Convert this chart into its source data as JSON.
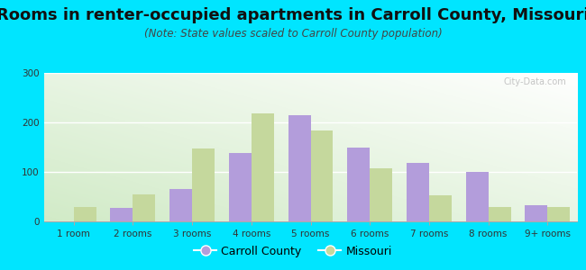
{
  "title": "Rooms in renter-occupied apartments in Carroll County, Missouri",
  "subtitle": "(Note: State values scaled to Carroll County population)",
  "categories": [
    "1 room",
    "2 rooms",
    "3 rooms",
    "4 rooms",
    "5 rooms",
    "6 rooms",
    "7 rooms",
    "8 rooms",
    "9+ rooms"
  ],
  "carroll_county": [
    0,
    28,
    65,
    138,
    215,
    150,
    118,
    100,
    33
  ],
  "missouri": [
    30,
    55,
    148,
    218,
    183,
    108,
    52,
    30,
    30
  ],
  "carroll_color": "#b39ddb",
  "missouri_color": "#c5d89d",
  "ylim": [
    0,
    300
  ],
  "yticks": [
    0,
    100,
    200,
    300
  ],
  "bg_outer": "#00e5ff",
  "bar_width": 0.38,
  "title_fontsize": 13,
  "subtitle_fontsize": 8.5,
  "legend_carroll": "Carroll County",
  "legend_missouri": "Missouri"
}
